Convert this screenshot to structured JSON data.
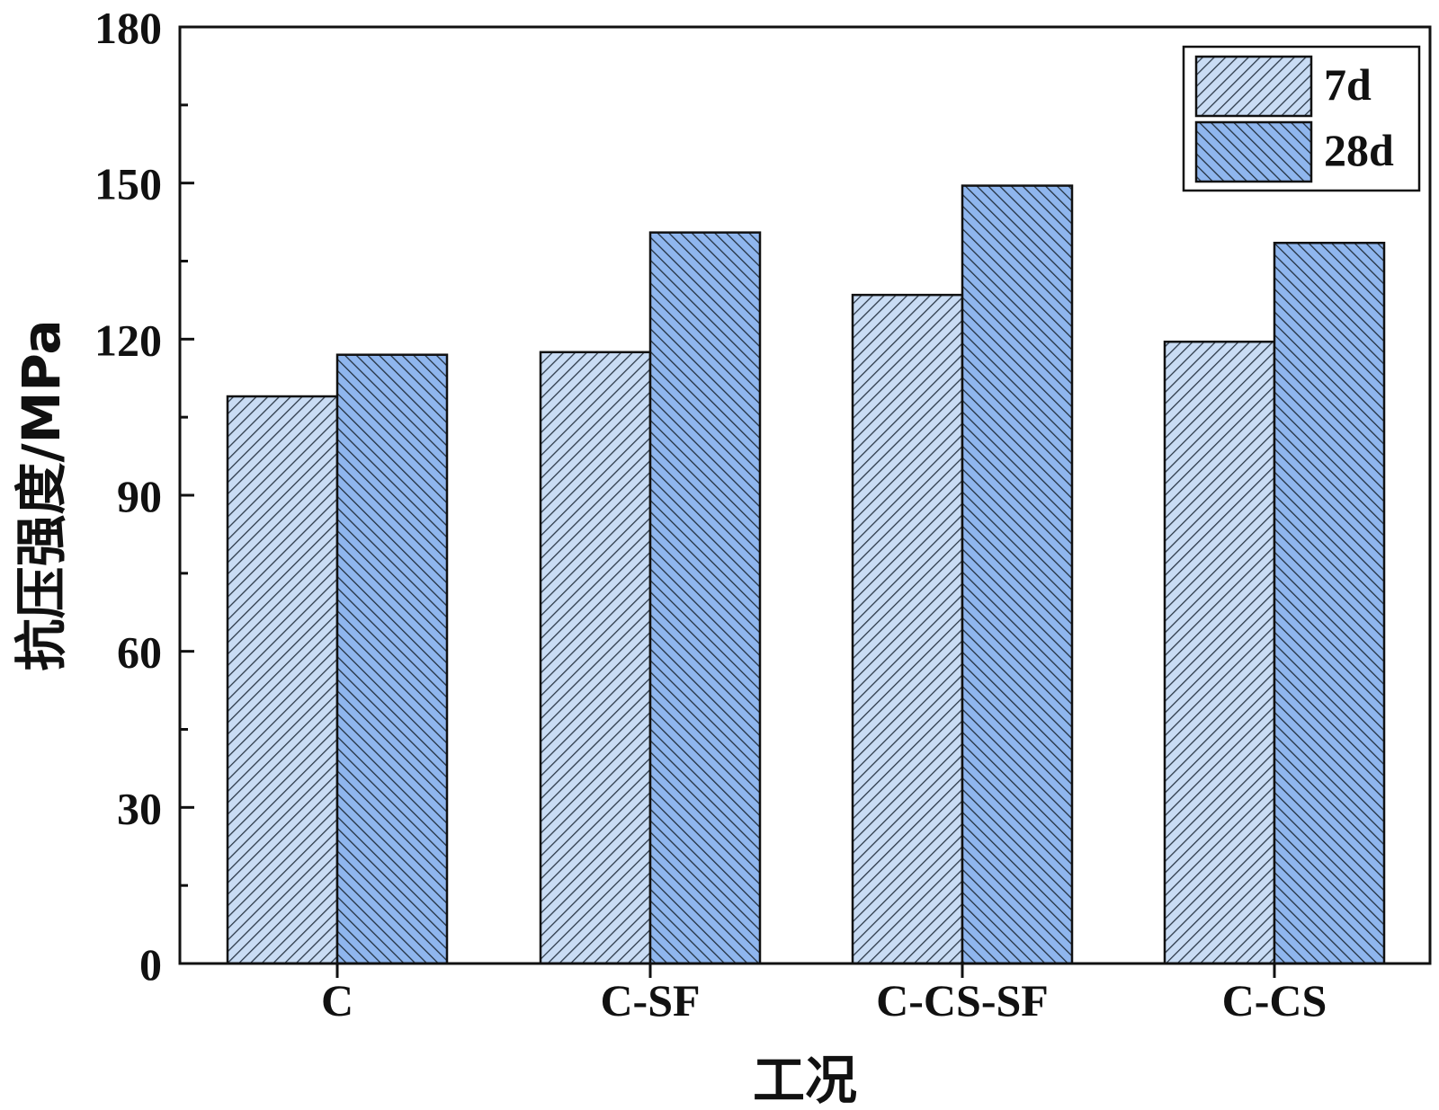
{
  "chart_data": {
    "type": "bar",
    "title": "",
    "xlabel": "工况",
    "ylabel": "抗压强度/MPa",
    "categories": [
      "C",
      "C-SF",
      "C-CS-SF",
      "C-CS"
    ],
    "series": [
      {
        "name": "7d",
        "values": [
          109,
          117.5,
          128.5,
          119.5
        ],
        "color": "#c9dcf4",
        "hatch": "forward"
      },
      {
        "name": "28d",
        "values": [
          117,
          140.5,
          149.5,
          138.5
        ],
        "color": "#8fb6ee",
        "hatch": "backward"
      }
    ],
    "ylim": [
      0,
      180
    ],
    "yticks": [
      0,
      30,
      60,
      90,
      120,
      150,
      180
    ],
    "minor_step": 15,
    "legend_position": "top-right",
    "grid": false
  }
}
